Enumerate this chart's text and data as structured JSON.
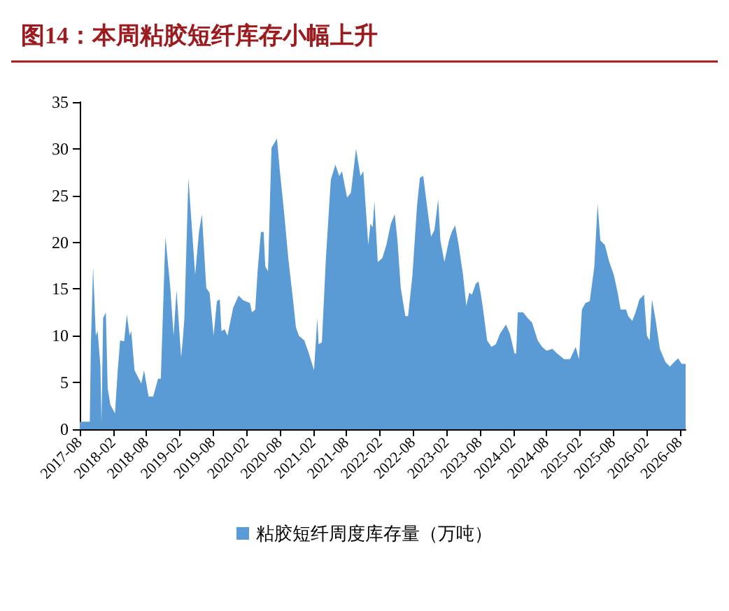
{
  "chart_data": {
    "type": "area",
    "title": "图14：本周粘胶短纤库存小幅上升",
    "x": [
      "2017-08-01",
      "2017-09-25",
      "2017-10-01",
      "2017-10-13",
      "2017-10-28",
      "2017-11-07",
      "2017-11-22",
      "2017-11-28",
      "2017-12-07",
      "2017-12-22",
      "2018-01-01",
      "2018-01-16",
      "2018-02-10",
      "2018-02-25",
      "2018-03-10",
      "2018-04-01",
      "2018-04-16",
      "2018-05-01",
      "2018-05-10",
      "2018-05-28",
      "2018-07-04",
      "2018-07-19",
      "2018-08-13",
      "2018-09-07",
      "2018-10-04",
      "2018-10-19",
      "2018-11-13",
      "2018-12-10",
      "2018-12-28",
      "2019-01-13",
      "2019-02-07",
      "2019-02-16",
      "2019-02-25",
      "2019-03-19",
      "2019-04-25",
      "2019-05-16",
      "2019-06-01",
      "2019-06-25",
      "2019-07-13",
      "2019-08-04",
      "2019-08-22",
      "2019-09-07",
      "2019-09-16",
      "2019-10-04",
      "2019-10-19",
      "2019-11-19",
      "2019-12-19",
      "2020-01-13",
      "2020-02-19",
      "2020-03-01",
      "2020-03-19",
      "2020-04-01",
      "2020-04-19",
      "2020-05-04",
      "2020-05-13",
      "2020-05-28",
      "2020-06-07",
      "2020-06-16",
      "2020-07-16",
      "2020-08-01",
      "2020-08-25",
      "2020-09-16",
      "2020-10-10",
      "2020-10-28",
      "2020-11-13",
      "2020-12-13",
      "2021-01-07",
      "2021-02-04",
      "2021-02-22",
      "2021-03-01",
      "2021-03-19",
      "2021-04-10",
      "2021-05-07",
      "2021-06-01",
      "2021-06-22",
      "2021-07-07",
      "2021-08-04",
      "2021-08-25",
      "2021-09-22",
      "2021-10-16",
      "2021-11-01",
      "2021-11-28",
      "2021-12-10",
      "2021-12-22",
      "2022-01-01",
      "2022-01-19",
      "2022-02-13",
      "2022-03-07",
      "2022-04-01",
      "2022-04-22",
      "2022-05-07",
      "2022-05-25",
      "2022-06-19",
      "2022-07-04",
      "2022-07-28",
      "2022-08-22",
      "2022-09-07",
      "2022-09-25",
      "2022-10-19",
      "2022-11-07",
      "2022-11-25",
      "2022-12-16",
      "2022-12-28",
      "2023-01-19",
      "2023-02-13",
      "2023-02-28",
      "2023-03-19",
      "2023-04-07",
      "2023-05-01",
      "2023-05-19",
      "2023-06-04",
      "2023-06-19",
      "2023-07-10",
      "2023-07-25",
      "2023-08-07",
      "2023-08-19",
      "2023-09-10",
      "2023-10-04",
      "2023-10-28",
      "2023-11-19",
      "2023-12-22",
      "2024-01-13",
      "2024-02-07",
      "2024-02-16",
      "2024-02-25",
      "2024-03-25",
      "2024-04-19",
      "2024-05-13",
      "2024-06-13",
      "2024-07-07",
      "2024-08-01",
      "2024-09-01",
      "2024-09-28",
      "2024-11-04",
      "2024-12-07",
      "2025-01-07",
      "2025-01-25",
      "2025-02-10",
      "2025-03-01",
      "2025-03-25",
      "2025-04-19",
      "2025-05-07",
      "2025-05-22",
      "2025-06-16",
      "2025-07-10",
      "2025-08-04",
      "2025-08-25",
      "2025-09-10",
      "2025-10-10",
      "2025-10-22",
      "2025-11-13",
      "2025-12-01",
      "2025-12-22",
      "2026-01-16",
      "2026-02-01",
      "2026-02-16",
      "2026-03-01",
      "2026-03-19",
      "2026-04-13",
      "2026-05-13",
      "2026-06-07",
      "2026-07-01",
      "2026-07-22",
      "2026-08-10",
      "2026-09-01"
    ],
    "series": [
      {
        "name": "粘胶短纤周度库存量（万吨）",
        "color": "#5b9bd5",
        "values": [
          0.8,
          0.8,
          9.1,
          17.4,
          10.0,
          10.5,
          6.8,
          0.7,
          11.9,
          12.5,
          4.4,
          2.6,
          1.7,
          6.3,
          9.5,
          9.4,
          12.3,
          10.0,
          10.5,
          6.3,
          4.9,
          6.3,
          3.5,
          3.5,
          5.4,
          5.4,
          20.6,
          15.1,
          10.0,
          14.9,
          7.7,
          9.5,
          11.9,
          26.9,
          16.5,
          21.1,
          23.0,
          15.1,
          14.6,
          10.0,
          13.7,
          13.9,
          10.5,
          10.7,
          10.0,
          13.0,
          14.3,
          13.8,
          13.5,
          12.5,
          12.8,
          16.9,
          21.1,
          21.1,
          17.4,
          16.9,
          23.9,
          30.1,
          31.1,
          27.6,
          23.0,
          18.3,
          14.2,
          10.9,
          10.0,
          9.5,
          8.1,
          6.3,
          11.9,
          9.1,
          9.3,
          18.3,
          26.7,
          28.3,
          27.1,
          27.6,
          24.8,
          25.3,
          30.0,
          27.1,
          27.6,
          19.7,
          22.0,
          21.6,
          24.4,
          17.9,
          18.3,
          19.7,
          22.0,
          23.0,
          20.2,
          15.1,
          12.1,
          12.1,
          16.5,
          23.9,
          26.9,
          27.1,
          23.4,
          20.6,
          21.3,
          24.6,
          20.2,
          17.9,
          20.2,
          21.1,
          21.8,
          19.7,
          16.5,
          13.2,
          14.6,
          14.4,
          15.6,
          15.8,
          14.4,
          12.8,
          9.5,
          8.8,
          9.1,
          10.2,
          11.2,
          10.2,
          8.1,
          8.1,
          12.5,
          12.5,
          11.9,
          11.4,
          9.5,
          8.8,
          8.4,
          8.6,
          8.1,
          7.5,
          7.5,
          8.8,
          7.5,
          12.8,
          13.5,
          13.7,
          17.4,
          24.1,
          20.2,
          19.7,
          17.9,
          16.5,
          14.6,
          12.8,
          12.8,
          12.1,
          11.6,
          12.5,
          13.9,
          14.4,
          10.0,
          9.5,
          13.9,
          11.9,
          8.6,
          7.2,
          6.7,
          7.2,
          7.6,
          7.0,
          7.0
        ]
      }
    ],
    "xlim": [
      "2017-08-01",
      "2026-09-01"
    ],
    "xticks": [
      "2017-08",
      "2018-02",
      "2018-08",
      "2019-02",
      "2019-08",
      "2020-02",
      "2020-08",
      "2021-02",
      "2021-08",
      "2022-02",
      "2022-08",
      "2023-02",
      "2023-08",
      "2024-02",
      "2024-08",
      "2025-02",
      "2025-08",
      "2026-02",
      "2026-08"
    ],
    "ylim": [
      0,
      35
    ],
    "yticks": [
      0,
      5,
      10,
      15,
      20,
      25,
      30,
      35
    ],
    "grid": false,
    "legend": "bottom",
    "marker": "none"
  }
}
